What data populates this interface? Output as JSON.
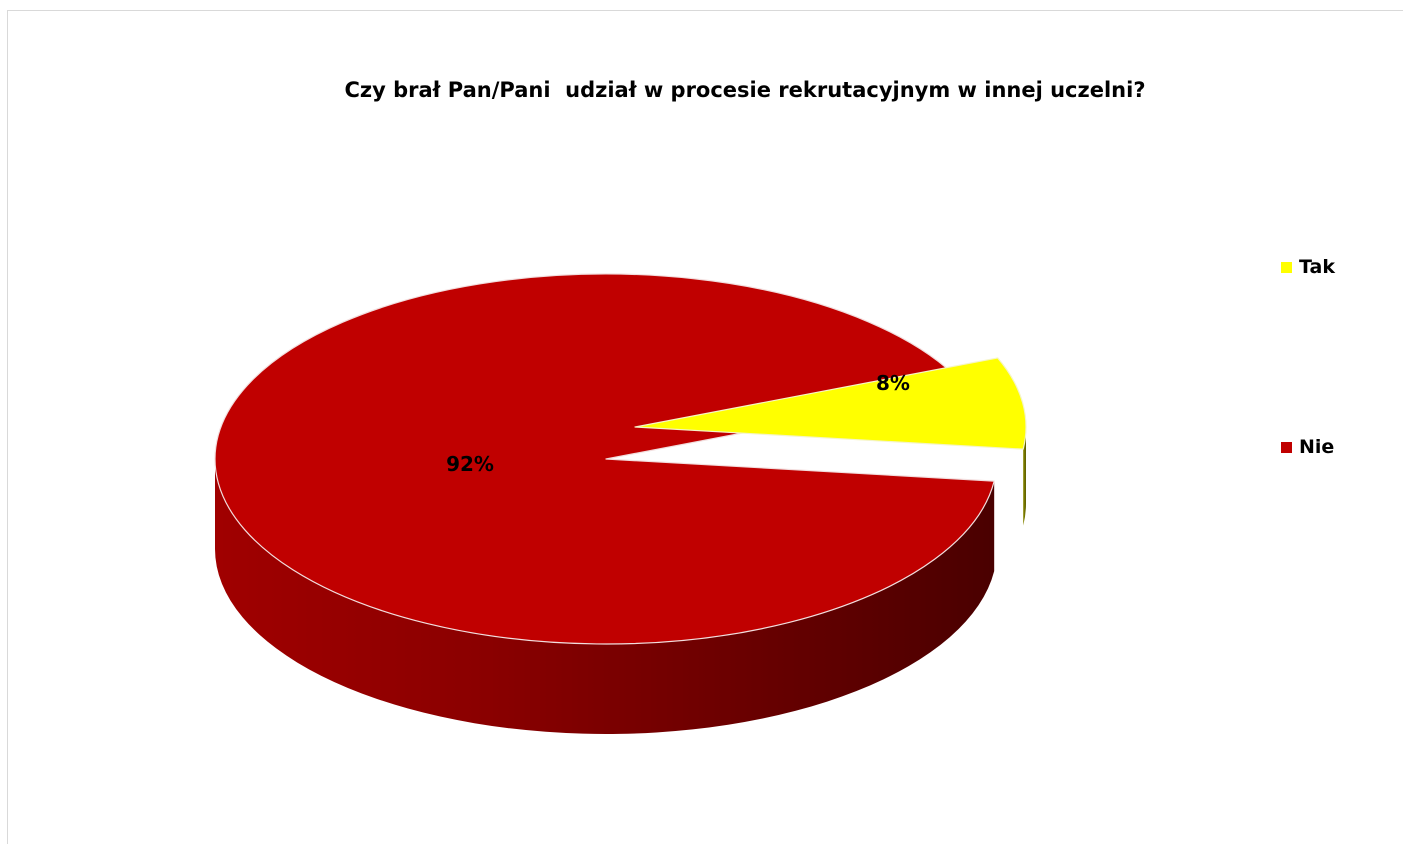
{
  "chart_data": {
    "type": "pie",
    "style": "3d-exploded",
    "title": "Czy brał Pan/Pani  udział w procesie rekrutacyjnym w innej uczelni?",
    "categories": [
      "Tak",
      "Nie"
    ],
    "values": [
      8,
      92
    ],
    "data_labels": [
      "8%",
      "92%"
    ],
    "colors": [
      "#FFFF00",
      "#C00000"
    ],
    "legend": "right"
  }
}
